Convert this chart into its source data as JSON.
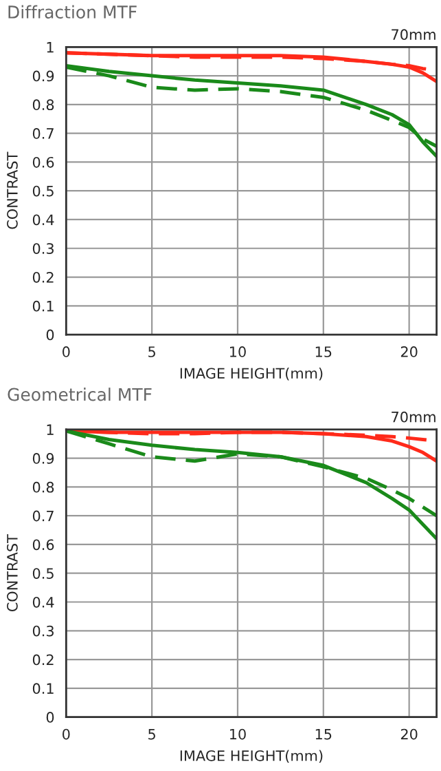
{
  "chart_data": [
    {
      "type": "line",
      "title": "Diffraction MTF",
      "xlabel": "IMAGE HEIGHT(mm)",
      "ylabel": "CONTRAST",
      "annotations": [
        "70mm"
      ],
      "x": [
        0,
        2.5,
        5,
        7.5,
        10,
        12.5,
        15,
        17.5,
        19,
        20,
        20.8,
        21.6
      ],
      "series": [
        {
          "color": "#ff2a1a",
          "line_style": "solid",
          "values": [
            0.98,
            0.975,
            0.97,
            0.97,
            0.97,
            0.97,
            0.965,
            0.95,
            0.94,
            0.93,
            0.91,
            0.88
          ]
        },
        {
          "color": "#ff2a1a",
          "line_style": "dashed",
          "values": [
            0.98,
            0.975,
            0.97,
            0.965,
            0.965,
            0.965,
            0.96,
            0.95,
            0.94,
            0.935,
            0.925,
            0.92
          ]
        },
        {
          "color": "#1a8a1a",
          "line_style": "solid",
          "values": [
            0.935,
            0.915,
            0.9,
            0.885,
            0.875,
            0.865,
            0.85,
            0.8,
            0.765,
            0.73,
            0.67,
            0.62
          ]
        },
        {
          "color": "#1a8a1a",
          "line_style": "dashed",
          "values": [
            0.93,
            0.9,
            0.86,
            0.85,
            0.855,
            0.845,
            0.825,
            0.78,
            0.745,
            0.72,
            0.68,
            0.655
          ]
        }
      ],
      "xlim": [
        0,
        21.6
      ],
      "xticks": [
        0,
        5,
        10,
        15,
        20
      ],
      "ylim": [
        0,
        1
      ],
      "yticks": [
        0,
        0.1,
        0.2,
        0.3,
        0.4,
        0.5,
        0.6,
        0.7,
        0.8,
        0.9,
        1
      ],
      "grid": true
    },
    {
      "type": "line",
      "title": "Geometrical MTF",
      "xlabel": "IMAGE HEIGHT(mm)",
      "ylabel": "CONTRAST",
      "annotations": [
        "70mm"
      ],
      "x": [
        0,
        2.5,
        5,
        7.5,
        10,
        12.5,
        15,
        17.5,
        19,
        20,
        20.8,
        21.6
      ],
      "series": [
        {
          "color": "#ff2a1a",
          "line_style": "solid",
          "values": [
            0.995,
            0.99,
            0.99,
            0.99,
            0.99,
            0.99,
            0.985,
            0.975,
            0.96,
            0.94,
            0.92,
            0.89
          ]
        },
        {
          "color": "#ff2a1a",
          "line_style": "dashed",
          "values": [
            0.995,
            0.99,
            0.985,
            0.985,
            0.99,
            0.99,
            0.985,
            0.98,
            0.975,
            0.97,
            0.965,
            0.96
          ]
        },
        {
          "color": "#1a8a1a",
          "line_style": "solid",
          "values": [
            0.995,
            0.965,
            0.945,
            0.93,
            0.92,
            0.905,
            0.875,
            0.815,
            0.76,
            0.72,
            0.67,
            0.62
          ]
        },
        {
          "color": "#1a8a1a",
          "line_style": "dashed",
          "values": [
            0.995,
            0.95,
            0.905,
            0.89,
            0.915,
            0.905,
            0.87,
            0.83,
            0.79,
            0.76,
            0.73,
            0.7
          ]
        }
      ],
      "xlim": [
        0,
        21.6
      ],
      "xticks": [
        0,
        5,
        10,
        15,
        20
      ],
      "ylim": [
        0,
        1
      ],
      "yticks": [
        0,
        0.1,
        0.2,
        0.3,
        0.4,
        0.5,
        0.6,
        0.7,
        0.8,
        0.9,
        1
      ],
      "grid": true
    }
  ]
}
